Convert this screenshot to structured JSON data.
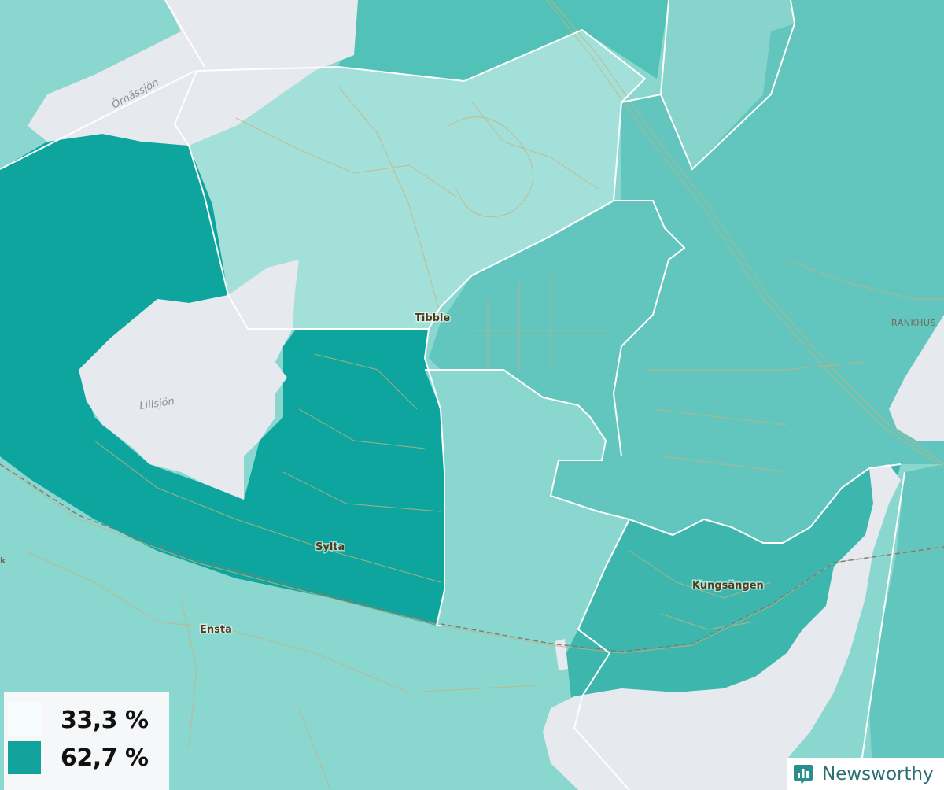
{
  "map": {
    "places": [
      {
        "name": "Tibble"
      },
      {
        "name": "Sylta"
      },
      {
        "name": "Kungsängen"
      },
      {
        "name": "Ensta"
      }
    ],
    "water_labels": [
      "Örnässjön",
      "Lillsjön"
    ],
    "area_labels": [
      "RANKHUS",
      "k"
    ]
  },
  "legend": {
    "items": [
      {
        "label": "33,3 %",
        "color": "#f7fcfc"
      },
      {
        "label": "62,7 %",
        "color": "#12a39c"
      }
    ]
  },
  "brand": {
    "name": "Newsworthy",
    "icon": "newsworthy-logo-icon"
  },
  "colors": {
    "water": "#e6e9ee",
    "region_light": "#a4e0da",
    "region_mid": "#8ad7cf",
    "region_medium": "#62c6be",
    "region_strong": "#3db7ad",
    "region_darkest": "#0fa59f",
    "roads": "#c8b27a",
    "borders": "#ffffff"
  }
}
